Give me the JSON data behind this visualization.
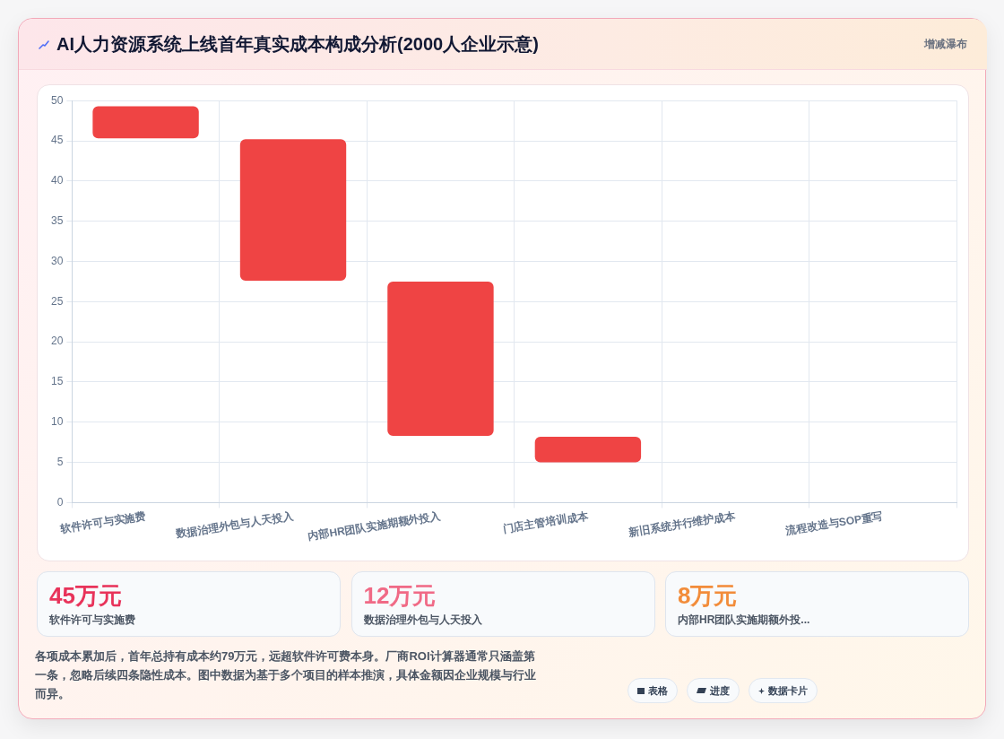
{
  "chart_data": [
    {
      "type": "bar",
      "title": "AI人力资源系统上线首年真实成本构成分析(2000人企业示意)",
      "categories": [
        "软件许可与实施费",
        "数据治理外包与人天投入",
        "内部HR团队实施期额外投入",
        "门店主管培训成本",
        "新旧系统并行维护成本",
        "流程改造与SOP重写"
      ],
      "values": [
        4,
        17.6,
        19.2,
        3.2,
        null,
        null
      ],
      "base": [
        45.3,
        27.6,
        8.3,
        5,
        null,
        null
      ],
      "color": "#ef4444",
      "ylim": [
        0,
        50
      ],
      "yticks": [
        0,
        5,
        10,
        15,
        20,
        25,
        30,
        35,
        40,
        45,
        50
      ],
      "grid": true,
      "annotations": [
        "增减瀑布"
      ]
    },
    {
      "type": "other",
      "annotations": [
        "45万元",
        "软件许可与实施费",
        "12万元",
        "数据治理外包与人天投入",
        "8万元",
        "内部HR团队实施期额外投...",
        "各项成本累加后，首年总持有成本约79万元，远超软件许可费本身。厂商ROI计算器通常只涵盖第一条，忽略后续四条隐性成本。图中数据为基于多个项目的样本推演，具体金额因企业规模与行业而异。",
        "表格",
        "进度",
        "数据卡片"
      ]
    }
  ]
}
